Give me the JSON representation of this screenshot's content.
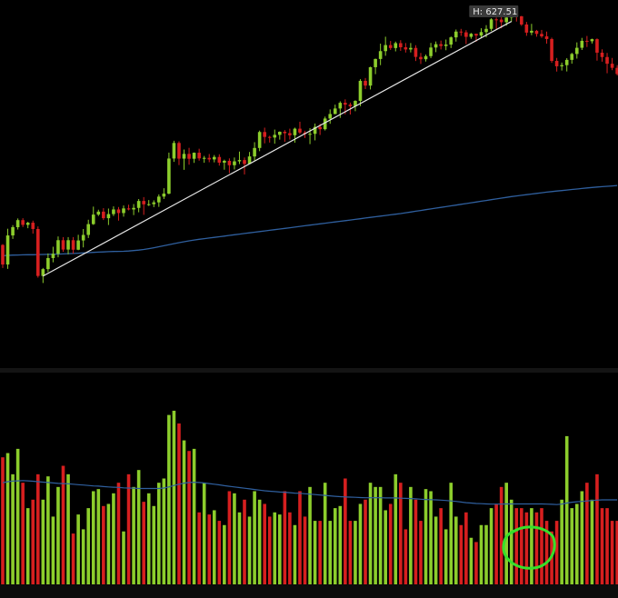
{
  "chart_data": [
    {
      "type": "candlestick",
      "panel": "price",
      "high_marker_label": "H: 627.51",
      "high_value": 627.51,
      "colors": {
        "up": "#8ccd2c",
        "down": "#d61f1f",
        "moving_average": "#2f5f9e",
        "trendline": "#e6e6e6",
        "background": "#000000"
      },
      "ohlc": [
        [
          447.2,
          447.8,
          429.3,
          432.0
        ],
        [
          432.0,
          459.8,
          428.6,
          454.6
        ],
        [
          454.6,
          462.6,
          451.9,
          461.0
        ],
        [
          461.0,
          467.8,
          459.2,
          466.5
        ],
        [
          466.5,
          468.0,
          461.1,
          462.8
        ],
        [
          462.8,
          465.2,
          460.2,
          464.5
        ],
        [
          464.5,
          466.1,
          456.0,
          459.6
        ],
        [
          459.6,
          461.6,
          421.8,
          423.1
        ],
        [
          423.1,
          429.3,
          417.6,
          428.4
        ],
        [
          428.4,
          440.6,
          426.1,
          437.0
        ],
        [
          437.0,
          445.8,
          433.7,
          440.3
        ],
        [
          440.3,
          453.8,
          437.6,
          450.9
        ],
        [
          450.9,
          453.3,
          441.9,
          443.6
        ],
        [
          443.6,
          453.3,
          439.9,
          450.9
        ],
        [
          450.9,
          453.3,
          440.5,
          443.5
        ],
        [
          443.5,
          455.1,
          443.1,
          450.7
        ],
        [
          450.7,
          459.6,
          445.3,
          455.0
        ],
        [
          455.0,
          466.8,
          452.6,
          463.4
        ],
        [
          463.4,
          477.0,
          462.8,
          470.8
        ],
        [
          470.8,
          474.6,
          469.7,
          473.1
        ],
        [
          473.1,
          475.8,
          466.6,
          468.0
        ],
        [
          468.0,
          475.5,
          462.7,
          471.2
        ],
        [
          471.2,
          477.2,
          469.7,
          474.8
        ],
        [
          474.8,
          476.7,
          466.1,
          472.0
        ],
        [
          472.0,
          477.9,
          469.2,
          475.6
        ],
        [
          475.6,
          478.5,
          474.1,
          474.8
        ],
        [
          474.8,
          479.0,
          470.4,
          476.0
        ],
        [
          476.0,
          482.9,
          472.6,
          481.4
        ],
        [
          481.4,
          484.4,
          470.6,
          478.8
        ],
        [
          478.8,
          482.1,
          477.5,
          478.9
        ],
        [
          478.9,
          481.9,
          476.6,
          480.3
        ],
        [
          480.3,
          486.5,
          476.8,
          484.8
        ],
        [
          484.8,
          491.3,
          482.9,
          487.1
        ],
        [
          487.1,
          519.0,
          486.6,
          514.4
        ],
        [
          514.4,
          528.2,
          511.8,
          526.5
        ],
        [
          526.5,
          527.8,
          509.3,
          514.3
        ],
        [
          514.3,
          521.4,
          505.6,
          518.0
        ],
        [
          518.0,
          522.7,
          509.6,
          514.2
        ],
        [
          514.2,
          519.1,
          511.0,
          518.9
        ],
        [
          518.9,
          522.0,
          512.7,
          514.5
        ],
        [
          514.5,
          516.4,
          511.1,
          514.9
        ],
        [
          514.9,
          517.9,
          511.5,
          513.7
        ],
        [
          513.7,
          517.1,
          511.4,
          515.6
        ],
        [
          515.6,
          517.7,
          508.9,
          511.2
        ],
        [
          511.2,
          513.5,
          505.7,
          512.6
        ],
        [
          512.6,
          514.5,
          503.0,
          509.2
        ],
        [
          509.2,
          515.2,
          505.9,
          512.2
        ],
        [
          512.2,
          519.8,
          510.1,
          513.2
        ],
        [
          513.2,
          515.2,
          502.0,
          510.2
        ],
        [
          510.2,
          519.5,
          510.1,
          516.0
        ],
        [
          516.0,
          527.1,
          512.7,
          522.6
        ],
        [
          522.6,
          536.1,
          520.1,
          535.0
        ],
        [
          535.0,
          538.4,
          526.2,
          531.2
        ],
        [
          531.2,
          532.1,
          526.8,
          530.7
        ],
        [
          530.7,
          536.9,
          525.9,
          532.8
        ],
        [
          532.8,
          535.5,
          529.1,
          535.2
        ],
        [
          535.2,
          536.5,
          527.4,
          534.1
        ],
        [
          534.1,
          537.6,
          529.1,
          532.5
        ],
        [
          532.5,
          538.4,
          526.7,
          537.6
        ],
        [
          537.6,
          543.0,
          533.4,
          534.6
        ],
        [
          534.6,
          536.0,
          530.4,
          533.5
        ],
        [
          533.5,
          538.0,
          525.6,
          533.6
        ],
        [
          533.6,
          541.6,
          528.5,
          539.0
        ],
        [
          539.0,
          541.4,
          532.7,
          537.2
        ],
        [
          537.2,
          547.0,
          536.2,
          545.5
        ],
        [
          545.5,
          552.6,
          541.4,
          549.0
        ],
        [
          549.0,
          556.3,
          548.8,
          553.3
        ],
        [
          553.3,
          558.9,
          546.0,
          557.7
        ],
        [
          557.7,
          560.4,
          548.8,
          556.3
        ],
        [
          556.3,
          557.9,
          548.6,
          555.1
        ],
        [
          555.1,
          559.7,
          551.2,
          559.2
        ],
        [
          559.2,
          576.1,
          555.1,
          574.8
        ],
        [
          574.8,
          577.0,
          568.4,
          571.1
        ],
        [
          571.1,
          585.8,
          568.1,
          585.4
        ],
        [
          585.4,
          592.1,
          580.0,
          591.8
        ],
        [
          591.8,
          603.7,
          587.0,
          597.9
        ],
        [
          597.9,
          609.1,
          594.3,
          602.6
        ],
        [
          602.6,
          605.8,
          598.8,
          600.3
        ],
        [
          600.3,
          605.3,
          597.7,
          604.1
        ],
        [
          604.1,
          606.4,
          598.1,
          600.9
        ],
        [
          600.9,
          604.2,
          596.8,
          599.2
        ],
        [
          599.2,
          604.2,
          596.9,
          600.4
        ],
        [
          600.4,
          602.5,
          590.2,
          593.4
        ],
        [
          593.4,
          596.5,
          587.9,
          591.6
        ],
        [
          591.6,
          595.2,
          589.8,
          594.0
        ],
        [
          594.0,
          604.3,
          592.4,
          600.7
        ],
        [
          600.7,
          605.4,
          597.1,
          603.3
        ],
        [
          603.3,
          606.1,
          599.2,
          601.9
        ],
        [
          601.9,
          606.9,
          598.6,
          603.0
        ],
        [
          603.0,
          609.3,
          600.3,
          608.6
        ],
        [
          608.6,
          614.7,
          605.3,
          613.1
        ],
        [
          613.1,
          615.2,
          609.8,
          612.5
        ],
        [
          612.5,
          614.2,
          603.4,
          609.0
        ],
        [
          609.0,
          612.0,
          607.5,
          611.4
        ],
        [
          611.4,
          611.5,
          605.2,
          610.0
        ],
        [
          610.0,
          615.7,
          608.0,
          612.7
        ],
        [
          612.7,
          618.1,
          608.6,
          615.2
        ],
        [
          615.2,
          623.5,
          613.5,
          622.6
        ],
        [
          622.6,
          624.0,
          614.6,
          622.4
        ],
        [
          622.4,
          624.2,
          615.6,
          620.4
        ],
        [
          620.4,
          624.9,
          617.7,
          624.0
        ],
        [
          624.0,
          626.5,
          620.8,
          626.3
        ],
        [
          626.3,
          627.5,
          620.9,
          625.0
        ],
        [
          625.0,
          625.3,
          617.5,
          618.6
        ],
        [
          618.6,
          620.6,
          609.8,
          612.3
        ],
        [
          612.3,
          619.1,
          610.3,
          613.7
        ],
        [
          613.7,
          614.4,
          609.1,
          611.3
        ],
        [
          611.3,
          614.4,
          608.2,
          609.4
        ],
        [
          609.4,
          613.1,
          603.7,
          607.3
        ],
        [
          607.3,
          608.4,
          588.8,
          590.3
        ],
        [
          590.3,
          592.6,
          582.0,
          586.1
        ],
        [
          586.1,
          589.0,
          582.8,
          587.0
        ],
        [
          587.0,
          592.4,
          582.1,
          591.1
        ],
        [
          591.1,
          596.6,
          588.1,
          595.7
        ],
        [
          595.7,
          604.7,
          592.1,
          600.5
        ],
        [
          600.5,
          608.2,
          598.8,
          605.9
        ],
        [
          605.9,
          609.7,
          601.1,
          605.6
        ],
        [
          605.6,
          607.6,
          603.8,
          607.2
        ],
        [
          607.2,
          607.8,
          590.5,
          596.7
        ],
        [
          596.7,
          599.3,
          589.7,
          593.3
        ],
        [
          593.3,
          596.5,
          580.7,
          588.1
        ],
        [
          588.1,
          592.6,
          583.1,
          584.9
        ],
        [
          584.9,
          587.0,
          579.0,
          580.1
        ]
      ],
      "moving_average": [
        438.8,
        439.1,
        439.3,
        439.4,
        439.5,
        439.6,
        439.6,
        439.7,
        439.8,
        439.9,
        440.0,
        440.1,
        440.2,
        440.4,
        440.6,
        440.8,
        441.0,
        441.2,
        441.4,
        441.6,
        441.8,
        442.0,
        442.1,
        442.2,
        442.3,
        442.5,
        442.8,
        443.2,
        443.7,
        444.3,
        445.0,
        445.8,
        446.6,
        447.4,
        448.2,
        449.0,
        449.7,
        450.4,
        451.0,
        451.6,
        452.1,
        452.6,
        453.1,
        453.6,
        454.1,
        454.6,
        455.1,
        455.6,
        456.1,
        456.6,
        457.1,
        457.6,
        458.1,
        458.6,
        459.1,
        459.6,
        460.1,
        460.6,
        461.1,
        461.6,
        462.1,
        462.6,
        463.1,
        463.6,
        464.1,
        464.6,
        465.1,
        465.6,
        466.1,
        466.6,
        467.1,
        467.6,
        468.1,
        468.6,
        469.1,
        469.6,
        470.1,
        470.6,
        471.1,
        471.6,
        472.2,
        472.8,
        473.4,
        474.0,
        474.6,
        475.2,
        475.8,
        476.4,
        477.0,
        477.6,
        478.2,
        478.8,
        479.4,
        480.0,
        480.6,
        481.2,
        481.8,
        482.4,
        483.0,
        483.6,
        484.2,
        484.8,
        485.3,
        485.8,
        486.3,
        486.8,
        487.3,
        487.8,
        488.3,
        488.7,
        489.1,
        489.5,
        489.9,
        490.3,
        490.7,
        491.1,
        491.5,
        491.9,
        492.2,
        492.5,
        492.8,
        493.1,
        493.4
      ],
      "trendline": {
        "from": {
          "bar": 8,
          "price": 423
        },
        "to": {
          "bar": 101,
          "price": 621
        }
      },
      "ylim": [
        355,
        632
      ]
    },
    {
      "type": "bar",
      "panel": "volume",
      "values": [
        60,
        62,
        52,
        64,
        48,
        36,
        40,
        52,
        40,
        51,
        32,
        46,
        56,
        52,
        24,
        33,
        26,
        36,
        44,
        45,
        37,
        38,
        43,
        48,
        25,
        52,
        46,
        54,
        39,
        43,
        37,
        48,
        50,
        80,
        82,
        76,
        68,
        63,
        64,
        34,
        48,
        33,
        35,
        30,
        28,
        44,
        43,
        34,
        40,
        32,
        44,
        40,
        38,
        32,
        34,
        33,
        44,
        34,
        28,
        44,
        32,
        46,
        30,
        30,
        48,
        30,
        36,
        37,
        50,
        30,
        30,
        38,
        40,
        48,
        46,
        46,
        35,
        38,
        52,
        48,
        26,
        46,
        40,
        30,
        45,
        44,
        32,
        36,
        26,
        48,
        32,
        28,
        34,
        22,
        20,
        28,
        28,
        36,
        38,
        46,
        48,
        40,
        36,
        36,
        34,
        36,
        34,
        36,
        30,
        25,
        30,
        40,
        70,
        36,
        38,
        44,
        48,
        40,
        52,
        36,
        36,
        30,
        30
      ],
      "moving_average": [
        48.0,
        48.5,
        48.8,
        48.9,
        49.0,
        48.9,
        48.7,
        48.5,
        48.3,
        48.1,
        47.9,
        47.7,
        47.6,
        47.5,
        47.3,
        47.1,
        46.9,
        46.7,
        46.5,
        46.4,
        46.2,
        46.0,
        45.9,
        45.8,
        45.6,
        45.5,
        45.4,
        45.3,
        45.3,
        45.3,
        45.3,
        45.3,
        45.5,
        46.0,
        46.7,
        47.3,
        47.8,
        48.1,
        48.2,
        48.1,
        47.9,
        47.6,
        47.3,
        47.0,
        46.6,
        46.3,
        46.0,
        45.7,
        45.4,
        45.1,
        44.8,
        44.5,
        44.2,
        44.0,
        43.8,
        43.6,
        43.5,
        43.3,
        43.1,
        43.0,
        42.8,
        42.6,
        42.4,
        42.2,
        42.0,
        41.8,
        41.6,
        41.4,
        41.3,
        41.2,
        41.1,
        41.0,
        40.9,
        40.9,
        40.9,
        40.9,
        40.8,
        40.8,
        40.8,
        40.7,
        40.6,
        40.5,
        40.4,
        40.2,
        40.1,
        40.0,
        39.9,
        39.8,
        39.6,
        39.4,
        39.2,
        38.9,
        38.6,
        38.4,
        38.2,
        38.1,
        38.0,
        37.9,
        37.9,
        37.9,
        38.0,
        38.0,
        38.0,
        38.0,
        38.0,
        38.0,
        38.0,
        38.0,
        37.9,
        37.8,
        37.7,
        37.9,
        38.4,
        38.8,
        39.0,
        39.2,
        39.4,
        39.6,
        39.8,
        39.9,
        39.9,
        39.9,
        39.9
      ],
      "ylim": [
        0,
        100
      ],
      "annotation": {
        "shape": "hand-drawn circle",
        "color": "#36e02a",
        "bars": [
          101,
          108
        ]
      }
    }
  ]
}
